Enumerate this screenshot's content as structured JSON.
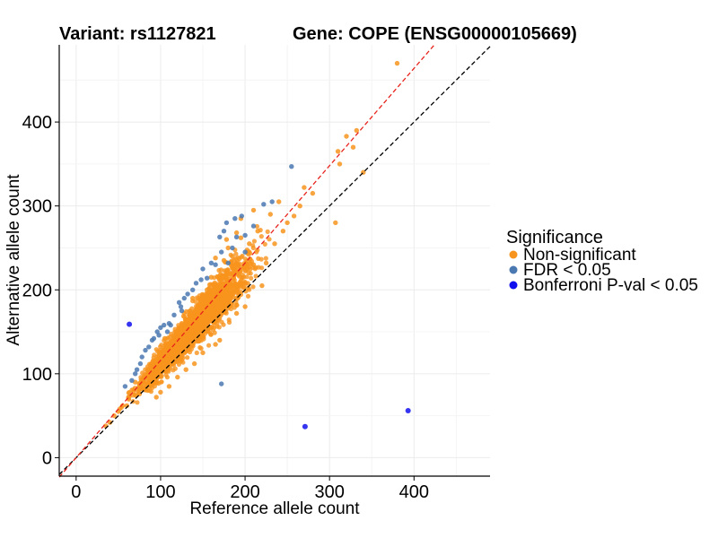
{
  "chart_data": {
    "type": "scatter",
    "title_left": "Variant: rs1127821",
    "title_right": "Gene: COPE (ENSG00000105669)",
    "xlabel": "Reference allele count",
    "ylabel": "Alternative allele count",
    "xlim": [
      -20,
      490
    ],
    "ylim": [
      -22,
      492
    ],
    "xticks": [
      0,
      100,
      200,
      300,
      400
    ],
    "yticks": [
      0,
      100,
      200,
      300,
      400
    ],
    "grid": true,
    "legend": {
      "title": "Significance",
      "placement": "right",
      "entries": [
        {
          "label": "Non-significant",
          "color": "#f7941d"
        },
        {
          "label": "FDR < 0.05",
          "color": "#4a78b0"
        },
        {
          "label": "Bonferroni P-val < 0.05",
          "color": "#1010ee"
        }
      ]
    },
    "reference_lines": [
      {
        "name": "identity line",
        "slope": 1.0,
        "intercept": 0,
        "color": "#000000",
        "style": "dashed"
      },
      {
        "name": "fitted ratio line",
        "slope": 1.16,
        "intercept": 0,
        "color": "#e8231c",
        "style": "dashed"
      }
    ],
    "cloud": {
      "description": "dense cloud of non-significant points along ratio ~1.12",
      "n_points": 2200,
      "x_range": [
        35,
        240
      ],
      "ratio_center": 1.12
    },
    "series": [
      {
        "name": "Non-significant",
        "color": "#f7941d",
        "points": [
          [
            380,
            470
          ],
          [
            332,
            390
          ],
          [
            320,
            383
          ],
          [
            328,
            370
          ],
          [
            310,
            365
          ],
          [
            312,
            350
          ],
          [
            340,
            340
          ],
          [
            307,
            280
          ],
          [
            280,
            315
          ],
          [
            265,
            300
          ],
          [
            258,
            288
          ],
          [
            270,
            322
          ],
          [
            250,
            280
          ],
          [
            245,
            270
          ],
          [
            230,
            290
          ],
          [
            235,
            255
          ],
          [
            225,
            232
          ],
          [
            215,
            270
          ],
          [
            205,
            255
          ],
          [
            195,
            262
          ],
          [
            210,
            230
          ],
          [
            240,
            305
          ],
          [
            185,
            240
          ],
          [
            175,
            235
          ],
          [
            220,
            205
          ],
          [
            200,
            180
          ],
          [
            190,
            172
          ],
          [
            170,
            140
          ],
          [
            165,
            135
          ],
          [
            150,
            125
          ],
          [
            140,
            112
          ],
          [
            130,
            105
          ],
          [
            120,
            96
          ],
          [
            110,
            85
          ],
          [
            100,
            78
          ],
          [
            95,
            72
          ],
          [
            85,
            80
          ],
          [
            75,
            76
          ],
          [
            60,
            62
          ],
          [
            50,
            55
          ],
          [
            45,
            50
          ],
          [
            40,
            42
          ],
          [
            35,
            38
          ],
          [
            90,
            90
          ],
          [
            80,
            95
          ],
          [
            70,
            90
          ],
          [
            105,
            125
          ],
          [
            115,
            145
          ],
          [
            125,
            160
          ],
          [
            135,
            175
          ],
          [
            145,
            190
          ],
          [
            155,
            200
          ],
          [
            160,
            215
          ],
          [
            180,
            250
          ],
          [
            195,
            285
          ],
          [
            210,
            295
          ],
          [
            128,
            172
          ],
          [
            138,
            190
          ],
          [
            178,
            260
          ],
          [
            190,
            268
          ],
          [
            165,
            238
          ],
          [
            62,
            72
          ],
          [
            55,
            62
          ],
          [
            105,
            142
          ]
        ]
      },
      {
        "name": "FDR < 0.05",
        "color": "#4a78b0",
        "points": [
          [
            255,
            347
          ],
          [
            232,
            305
          ],
          [
            222,
            302
          ],
          [
            196,
            288
          ],
          [
            188,
            285
          ],
          [
            178,
            280
          ],
          [
            175,
            270
          ],
          [
            190,
            263
          ],
          [
            185,
            250
          ],
          [
            170,
            263
          ],
          [
            172,
            245
          ],
          [
            165,
            230
          ],
          [
            160,
            232
          ],
          [
            150,
            225
          ],
          [
            148,
            212
          ],
          [
            138,
            200
          ],
          [
            132,
            195
          ],
          [
            122,
            185
          ],
          [
            125,
            175
          ],
          [
            116,
            170
          ],
          [
            110,
            160
          ],
          [
            104,
            158
          ],
          [
            100,
            155
          ],
          [
            96,
            150
          ],
          [
            90,
            140
          ],
          [
            86,
            132
          ],
          [
            82,
            128
          ],
          [
            78,
            120
          ],
          [
            76,
            112
          ],
          [
            72,
            105
          ],
          [
            70,
            100
          ],
          [
            66,
            92
          ],
          [
            58,
            85
          ],
          [
            92,
            142
          ],
          [
            112,
            158
          ],
          [
            128,
            190
          ],
          [
            142,
            208
          ],
          [
            155,
            214
          ],
          [
            172,
            88
          ],
          [
            180,
            232
          ],
          [
            200,
            245
          ],
          [
            124,
            180
          ],
          [
            108,
            150
          ],
          [
            98,
            146
          ],
          [
            210,
            276
          ],
          [
            200,
            265
          ]
        ]
      },
      {
        "name": "Bonferroni P-val < 0.05",
        "color": "#1010ee",
        "points": [
          [
            63,
            159
          ],
          [
            271,
            37
          ],
          [
            393,
            56
          ]
        ]
      }
    ]
  }
}
